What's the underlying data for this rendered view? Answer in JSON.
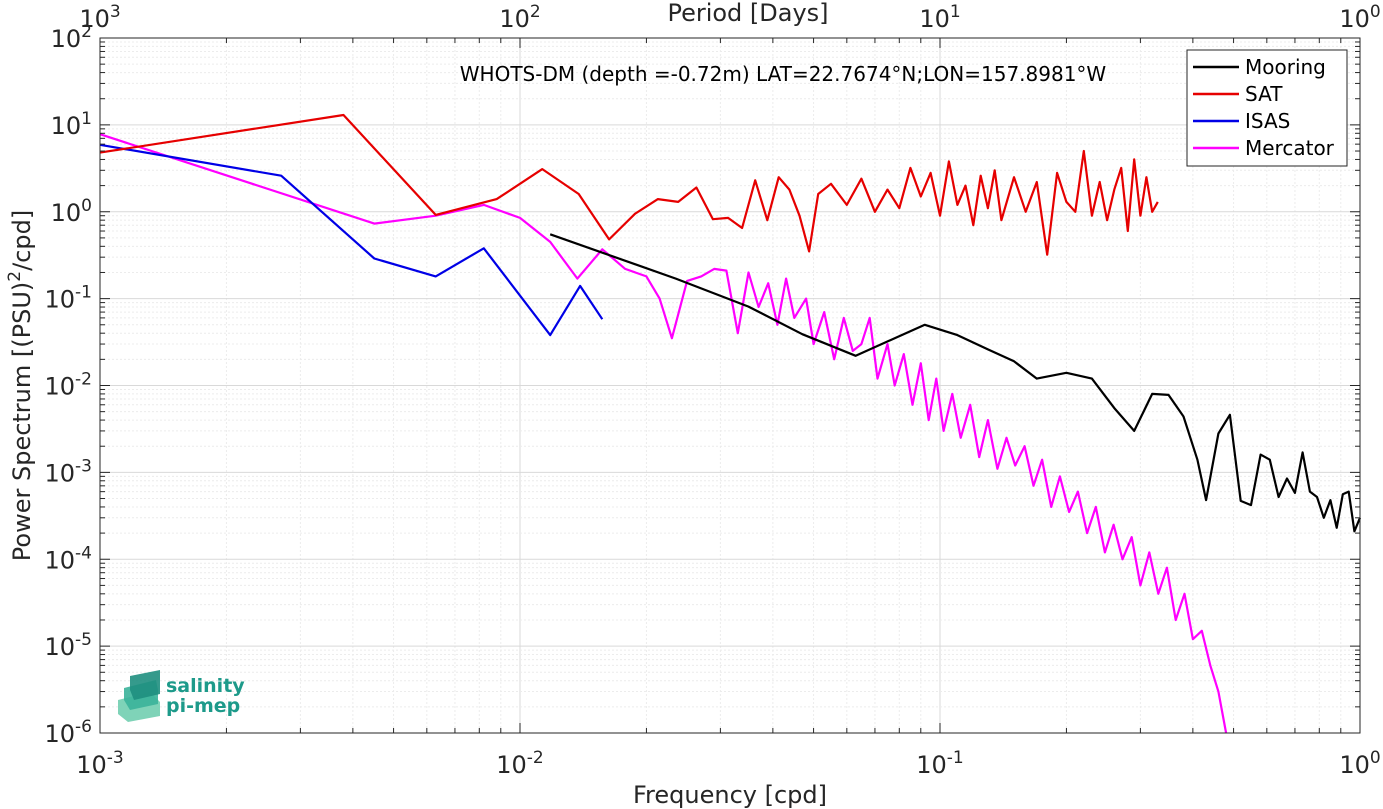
{
  "chart_data": {
    "type": "line",
    "title": "",
    "annotation": "WHOTS-DM (depth =-0.72m) LAT=22.7674°N;LON=157.8981°W",
    "xlabel": "Frequency [cpd]",
    "ylabel": "Power Spectrum [(PSU)²/cpd]",
    "x2label": "Period [Days]",
    "xscale": "log",
    "yscale": "log",
    "xlim": [
      0.001,
      1
    ],
    "ylim": [
      1e-06,
      100
    ],
    "grid": true,
    "legend_position": "top-right",
    "x_ticks": [
      {
        "base": "10",
        "exp": "-3"
      },
      {
        "base": "10",
        "exp": "-2"
      },
      {
        "base": "10",
        "exp": "-1"
      },
      {
        "base": "10",
        "exp": "0"
      }
    ],
    "x2_ticks": [
      {
        "base": "10",
        "exp": "3"
      },
      {
        "base": "10",
        "exp": "2"
      },
      {
        "base": "10",
        "exp": "1"
      },
      {
        "base": "10",
        "exp": "0"
      }
    ],
    "y_ticks": [
      {
        "base": "10",
        "exp": "2"
      },
      {
        "base": "10",
        "exp": "1"
      },
      {
        "base": "10",
        "exp": "0"
      },
      {
        "base": "10",
        "exp": "-1"
      },
      {
        "base": "10",
        "exp": "-2"
      },
      {
        "base": "10",
        "exp": "-3"
      },
      {
        "base": "10",
        "exp": "-4"
      },
      {
        "base": "10",
        "exp": "-5"
      },
      {
        "base": "10",
        "exp": "-6"
      }
    ],
    "series": [
      {
        "name": "Mooring",
        "color": "#000000",
        "x": [
          0.0118,
          0.0235,
          0.035,
          0.047,
          0.063,
          0.078,
          0.092,
          0.11,
          0.13,
          0.15,
          0.17,
          0.2,
          0.23,
          0.26,
          0.29,
          0.32,
          0.35,
          0.38,
          0.41,
          0.43,
          0.46,
          0.49,
          0.52,
          0.55,
          0.58,
          0.61,
          0.64,
          0.67,
          0.7,
          0.73,
          0.76,
          0.79,
          0.82,
          0.85,
          0.88,
          0.91,
          0.94,
          0.97,
          1.0
        ],
        "y": [
          0.55,
          0.17,
          0.081,
          0.039,
          0.022,
          0.035,
          0.05,
          0.038,
          0.026,
          0.019,
          0.012,
          0.014,
          0.012,
          0.0055,
          0.003,
          0.008,
          0.0078,
          0.0044,
          0.0014,
          0.00048,
          0.0028,
          0.0046,
          0.00047,
          0.00042,
          0.0016,
          0.0014,
          0.00052,
          0.00085,
          0.00058,
          0.0017,
          0.0006,
          0.00052,
          0.0003,
          0.00048,
          0.00023,
          0.00056,
          0.0006,
          0.00021,
          0.0003
        ]
      },
      {
        "name": "SAT",
        "color": "#e60000",
        "x": [
          0.001,
          0.0038,
          0.0063,
          0.0088,
          0.0113,
          0.0138,
          0.0163,
          0.0188,
          0.0213,
          0.0238,
          0.0263,
          0.0288,
          0.0313,
          0.0338,
          0.0363,
          0.0388,
          0.0413,
          0.0438,
          0.0463,
          0.0488,
          0.0513,
          0.055,
          0.06,
          0.065,
          0.07,
          0.075,
          0.08,
          0.085,
          0.09,
          0.095,
          0.1,
          0.105,
          0.11,
          0.115,
          0.12,
          0.125,
          0.13,
          0.135,
          0.14,
          0.15,
          0.16,
          0.17,
          0.18,
          0.19,
          0.2,
          0.21,
          0.22,
          0.23,
          0.24,
          0.25,
          0.26,
          0.27,
          0.28,
          0.29,
          0.3,
          0.31,
          0.32,
          0.33
        ],
        "y": [
          4.8,
          13.0,
          0.92,
          1.4,
          3.1,
          1.6,
          0.48,
          0.95,
          1.4,
          1.3,
          1.9,
          0.82,
          0.85,
          0.65,
          2.3,
          0.8,
          2.5,
          1.8,
          0.9,
          0.35,
          1.6,
          2.1,
          1.2,
          2.4,
          1.0,
          1.8,
          1.1,
          3.2,
          1.5,
          2.8,
          0.9,
          3.8,
          1.2,
          2.0,
          0.7,
          2.6,
          1.1,
          3.0,
          0.8,
          2.5,
          1.0,
          2.2,
          0.32,
          2.8,
          1.3,
          1.0,
          5.0,
          0.9,
          2.2,
          0.8,
          1.8,
          3.2,
          0.6,
          4.0,
          0.9,
          2.5,
          1.0,
          1.3
        ]
      },
      {
        "name": "ISAS",
        "color": "#0000e6",
        "x": [
          0.001,
          0.0027,
          0.0045,
          0.0063,
          0.0082,
          0.0118,
          0.0139,
          0.0157
        ],
        "y": [
          5.9,
          2.6,
          0.29,
          0.18,
          0.38,
          0.038,
          0.14,
          0.058
        ]
      },
      {
        "name": "Mercator",
        "color": "#ff00ff",
        "x": [
          0.001,
          0.0045,
          0.0063,
          0.0082,
          0.01,
          0.0118,
          0.0137,
          0.0157,
          0.0178,
          0.02,
          0.0215,
          0.023,
          0.025,
          0.027,
          0.029,
          0.031,
          0.033,
          0.035,
          0.037,
          0.039,
          0.041,
          0.043,
          0.045,
          0.048,
          0.05,
          0.053,
          0.056,
          0.059,
          0.062,
          0.065,
          0.068,
          0.071,
          0.075,
          0.078,
          0.082,
          0.086,
          0.09,
          0.094,
          0.098,
          0.102,
          0.107,
          0.112,
          0.118,
          0.124,
          0.13,
          0.137,
          0.144,
          0.151,
          0.159,
          0.167,
          0.175,
          0.184,
          0.193,
          0.203,
          0.213,
          0.224,
          0.235,
          0.247,
          0.259,
          0.272,
          0.286,
          0.3,
          0.315,
          0.331,
          0.347,
          0.364,
          0.382,
          0.4,
          0.42,
          0.44,
          0.46,
          0.48
        ],
        "y": [
          7.8,
          0.73,
          0.9,
          1.2,
          0.85,
          0.45,
          0.17,
          0.37,
          0.22,
          0.18,
          0.1,
          0.035,
          0.16,
          0.18,
          0.22,
          0.21,
          0.04,
          0.2,
          0.08,
          0.15,
          0.05,
          0.17,
          0.06,
          0.1,
          0.03,
          0.07,
          0.02,
          0.06,
          0.025,
          0.03,
          0.06,
          0.012,
          0.03,
          0.01,
          0.023,
          0.006,
          0.018,
          0.004,
          0.012,
          0.003,
          0.008,
          0.0025,
          0.006,
          0.0015,
          0.004,
          0.0011,
          0.0025,
          0.0012,
          0.002,
          0.0007,
          0.0014,
          0.0004,
          0.0009,
          0.00035,
          0.0006,
          0.0002,
          0.0004,
          0.00012,
          0.00025,
          0.0001,
          0.00018,
          5e-05,
          0.00012,
          4e-05,
          8e-05,
          2e-05,
          4e-05,
          1.2e-05,
          1.5e-05,
          6e-06,
          3e-06,
          1e-06
        ]
      }
    ]
  },
  "logo": {
    "line1": "salinity",
    "line2": "pi-mep"
  }
}
